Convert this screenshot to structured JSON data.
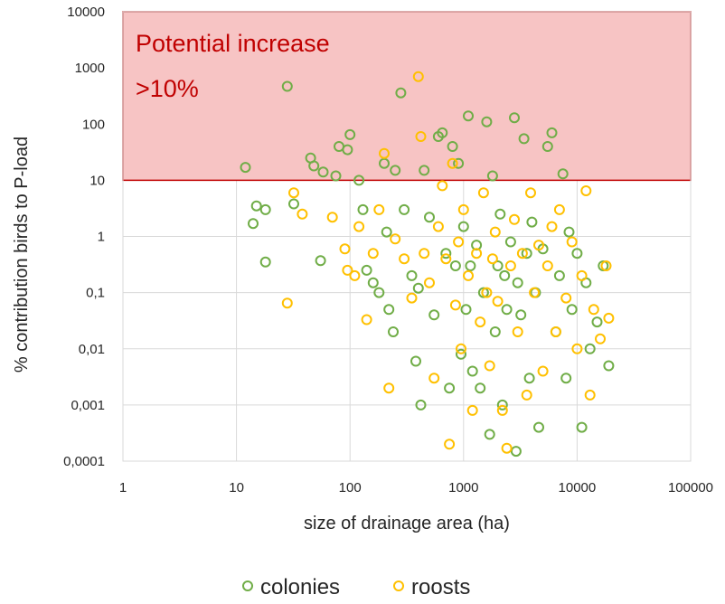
{
  "chart_data": {
    "type": "scatter",
    "title": "",
    "xlabel": "size of drainage area (ha)",
    "ylabel": "% contribution birds to P-load",
    "xscale": "log",
    "yscale": "log",
    "xlim": [
      1,
      100000
    ],
    "ylim": [
      0.0001,
      10000
    ],
    "x_ticks": [
      "1",
      "10",
      "100",
      "1000",
      "10000",
      "100000"
    ],
    "y_ticks": [
      "0,0001",
      "0,001",
      "0,01",
      "0,1",
      "1",
      "10",
      "100",
      "1000",
      "10000"
    ],
    "grid": "on",
    "legend_position": "bottom-center",
    "annotation": {
      "line1": "Potential increase",
      "line2": ">10%",
      "y_from": 10,
      "y_to": 10000,
      "fill_color": "#f7c4c4",
      "border_color": "#c00000",
      "text_color": "#c00000"
    },
    "series": [
      {
        "name": "colonies",
        "color": "#70ad47",
        "points": [
          [
            12,
            17
          ],
          [
            15,
            3.5
          ],
          [
            14,
            1.7
          ],
          [
            18,
            0.35
          ],
          [
            18,
            3.0
          ],
          [
            28,
            470
          ],
          [
            32,
            3.8
          ],
          [
            45,
            25
          ],
          [
            48,
            18
          ],
          [
            55,
            0.37
          ],
          [
            58,
            14
          ],
          [
            75,
            12
          ],
          [
            80,
            40
          ],
          [
            95,
            35
          ],
          [
            100,
            65
          ],
          [
            130,
            3
          ],
          [
            120,
            10
          ],
          [
            140,
            0.25
          ],
          [
            160,
            0.15
          ],
          [
            180,
            0.1
          ],
          [
            200,
            20
          ],
          [
            210,
            1.2
          ],
          [
            220,
            0.05
          ],
          [
            240,
            0.02
          ],
          [
            250,
            15
          ],
          [
            280,
            360
          ],
          [
            300,
            3
          ],
          [
            350,
            0.2
          ],
          [
            380,
            0.006
          ],
          [
            400,
            0.12
          ],
          [
            420,
            0.001
          ],
          [
            450,
            15
          ],
          [
            500,
            2.2
          ],
          [
            550,
            0.04
          ],
          [
            600,
            60
          ],
          [
            650,
            70
          ],
          [
            700,
            0.5
          ],
          [
            750,
            0.002
          ],
          [
            800,
            40
          ],
          [
            850,
            0.3
          ],
          [
            900,
            20
          ],
          [
            950,
            0.008
          ],
          [
            1000,
            1.5
          ],
          [
            1050,
            0.05
          ],
          [
            1100,
            140
          ],
          [
            1150,
            0.3
          ],
          [
            1200,
            0.004
          ],
          [
            1300,
            0.7
          ],
          [
            1400,
            0.002
          ],
          [
            1500,
            0.1
          ],
          [
            1600,
            110
          ],
          [
            1700,
            0.0003
          ],
          [
            1800,
            12
          ],
          [
            1900,
            0.02
          ],
          [
            2000,
            0.3
          ],
          [
            2100,
            2.5
          ],
          [
            2200,
            0.001
          ],
          [
            2300,
            0.2
          ],
          [
            2400,
            0.05
          ],
          [
            2600,
            0.8
          ],
          [
            2800,
            130
          ],
          [
            2900,
            0.00015
          ],
          [
            3000,
            0.15
          ],
          [
            3200,
            0.04
          ],
          [
            3400,
            55
          ],
          [
            3600,
            0.5
          ],
          [
            3800,
            0.003
          ],
          [
            4000,
            1.8
          ],
          [
            4300,
            0.1
          ],
          [
            4600,
            0.0004
          ],
          [
            5000,
            0.6
          ],
          [
            5500,
            40
          ],
          [
            6000,
            70
          ],
          [
            6500,
            0.02
          ],
          [
            7000,
            0.2
          ],
          [
            7500,
            13
          ],
          [
            8000,
            0.003
          ],
          [
            8500,
            1.2
          ],
          [
            9000,
            0.05
          ],
          [
            10000,
            0.5
          ],
          [
            11000,
            0.0004
          ],
          [
            12000,
            0.15
          ],
          [
            13000,
            0.01
          ],
          [
            15000,
            0.03
          ],
          [
            17000,
            0.3
          ],
          [
            19000,
            0.005
          ]
        ]
      },
      {
        "name": "roosts",
        "color": "#ffc000",
        "points": [
          [
            28,
            0.065
          ],
          [
            32,
            6
          ],
          [
            38,
            2.5
          ],
          [
            70,
            2.2
          ],
          [
            90,
            0.6
          ],
          [
            95,
            0.25
          ],
          [
            110,
            0.2
          ],
          [
            120,
            1.5
          ],
          [
            140,
            0.033
          ],
          [
            160,
            0.5
          ],
          [
            180,
            3
          ],
          [
            200,
            30
          ],
          [
            220,
            0.002
          ],
          [
            250,
            0.9
          ],
          [
            300,
            0.4
          ],
          [
            350,
            0.08
          ],
          [
            400,
            700
          ],
          [
            420,
            60
          ],
          [
            450,
            0.5
          ],
          [
            500,
            0.15
          ],
          [
            550,
            0.003
          ],
          [
            600,
            1.5
          ],
          [
            650,
            8
          ],
          [
            700,
            0.4
          ],
          [
            750,
            0.0002
          ],
          [
            800,
            20
          ],
          [
            850,
            0.06
          ],
          [
            900,
            0.8
          ],
          [
            950,
            0.01
          ],
          [
            1000,
            3
          ],
          [
            1100,
            0.2
          ],
          [
            1200,
            0.0008
          ],
          [
            1300,
            0.5
          ],
          [
            1400,
            0.03
          ],
          [
            1500,
            6
          ],
          [
            1600,
            0.1
          ],
          [
            1700,
            0.005
          ],
          [
            1800,
            0.4
          ],
          [
            1900,
            1.2
          ],
          [
            2000,
            0.07
          ],
          [
            2200,
            0.0008
          ],
          [
            2400,
            0.00017
          ],
          [
            2600,
            0.3
          ],
          [
            2800,
            2
          ],
          [
            3000,
            0.02
          ],
          [
            3300,
            0.5
          ],
          [
            3600,
            0.0015
          ],
          [
            3900,
            6
          ],
          [
            4200,
            0.1
          ],
          [
            4600,
            0.7
          ],
          [
            5000,
            0.004
          ],
          [
            5500,
            0.3
          ],
          [
            6000,
            1.5
          ],
          [
            6500,
            0.02
          ],
          [
            7000,
            3
          ],
          [
            8000,
            0.08
          ],
          [
            9000,
            0.8
          ],
          [
            10000,
            0.01
          ],
          [
            11000,
            0.2
          ],
          [
            12000,
            6.5
          ],
          [
            13000,
            0.0015
          ],
          [
            14000,
            0.05
          ],
          [
            16000,
            0.015
          ],
          [
            18000,
            0.3
          ],
          [
            19000,
            0.035
          ]
        ]
      }
    ]
  }
}
